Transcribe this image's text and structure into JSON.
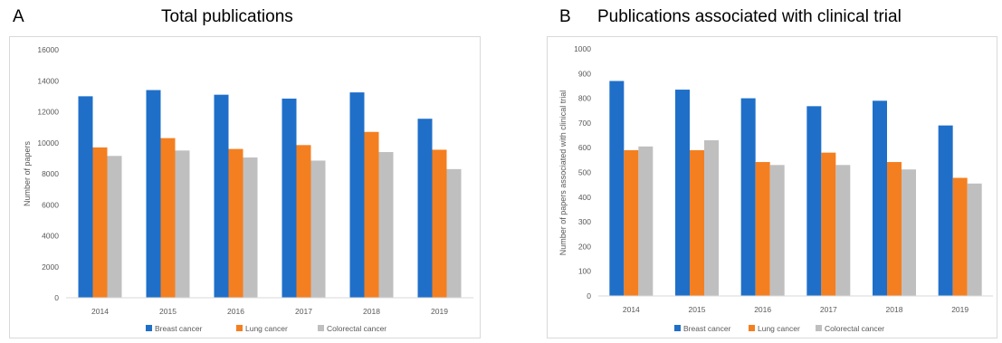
{
  "panels": [
    {
      "letter": "A",
      "title": "Total publications"
    },
    {
      "letter": "B",
      "title": "Publications associated with clinical trial"
    }
  ],
  "chart_data": [
    {
      "type": "bar",
      "title": "Total publications",
      "categories": [
        "2014",
        "2015",
        "2016",
        "2017",
        "2018",
        "2019"
      ],
      "series": [
        {
          "name": "Breast cancer",
          "color": "#1f6fc9",
          "values": [
            13000,
            13400,
            13100,
            12850,
            13250,
            11550
          ]
        },
        {
          "name": "Lung cancer",
          "color": "#f47f20",
          "values": [
            9700,
            10300,
            9600,
            9850,
            10700,
            9550
          ]
        },
        {
          "name": "Colorectal cancer",
          "color": "#bfbfbf",
          "values": [
            9150,
            9500,
            9050,
            8850,
            9400,
            8300
          ]
        }
      ],
      "xlabel": "",
      "ylabel": "Number of papers",
      "ylim": [
        0,
        16000
      ],
      "yticks": [
        "0",
        "2000",
        "4000",
        "6000",
        "8000",
        "10000",
        "12000",
        "14000",
        "16000"
      ],
      "legend": "bottom",
      "grid": false
    },
    {
      "type": "bar",
      "title": "Publications associated with clinical trial",
      "categories": [
        "2014",
        "2015",
        "2016",
        "2017",
        "2018",
        "2019"
      ],
      "series": [
        {
          "name": "Breast cancer",
          "color": "#1f6fc9",
          "values": [
            870,
            835,
            800,
            768,
            790,
            690
          ]
        },
        {
          "name": "Lung cancer",
          "color": "#f47f20",
          "values": [
            590,
            590,
            542,
            580,
            542,
            478
          ]
        },
        {
          "name": "Colorectal cancer",
          "color": "#bfbfbf",
          "values": [
            605,
            630,
            530,
            530,
            512,
            455
          ]
        }
      ],
      "xlabel": "",
      "ylabel": "Number of papers associated with clinical trial",
      "ylim": [
        0,
        1000
      ],
      "yticks": [
        "0",
        "100",
        "200",
        "300",
        "400",
        "500",
        "600",
        "700",
        "800",
        "900",
        "1000"
      ],
      "legend": "bottom",
      "grid": false
    }
  ]
}
